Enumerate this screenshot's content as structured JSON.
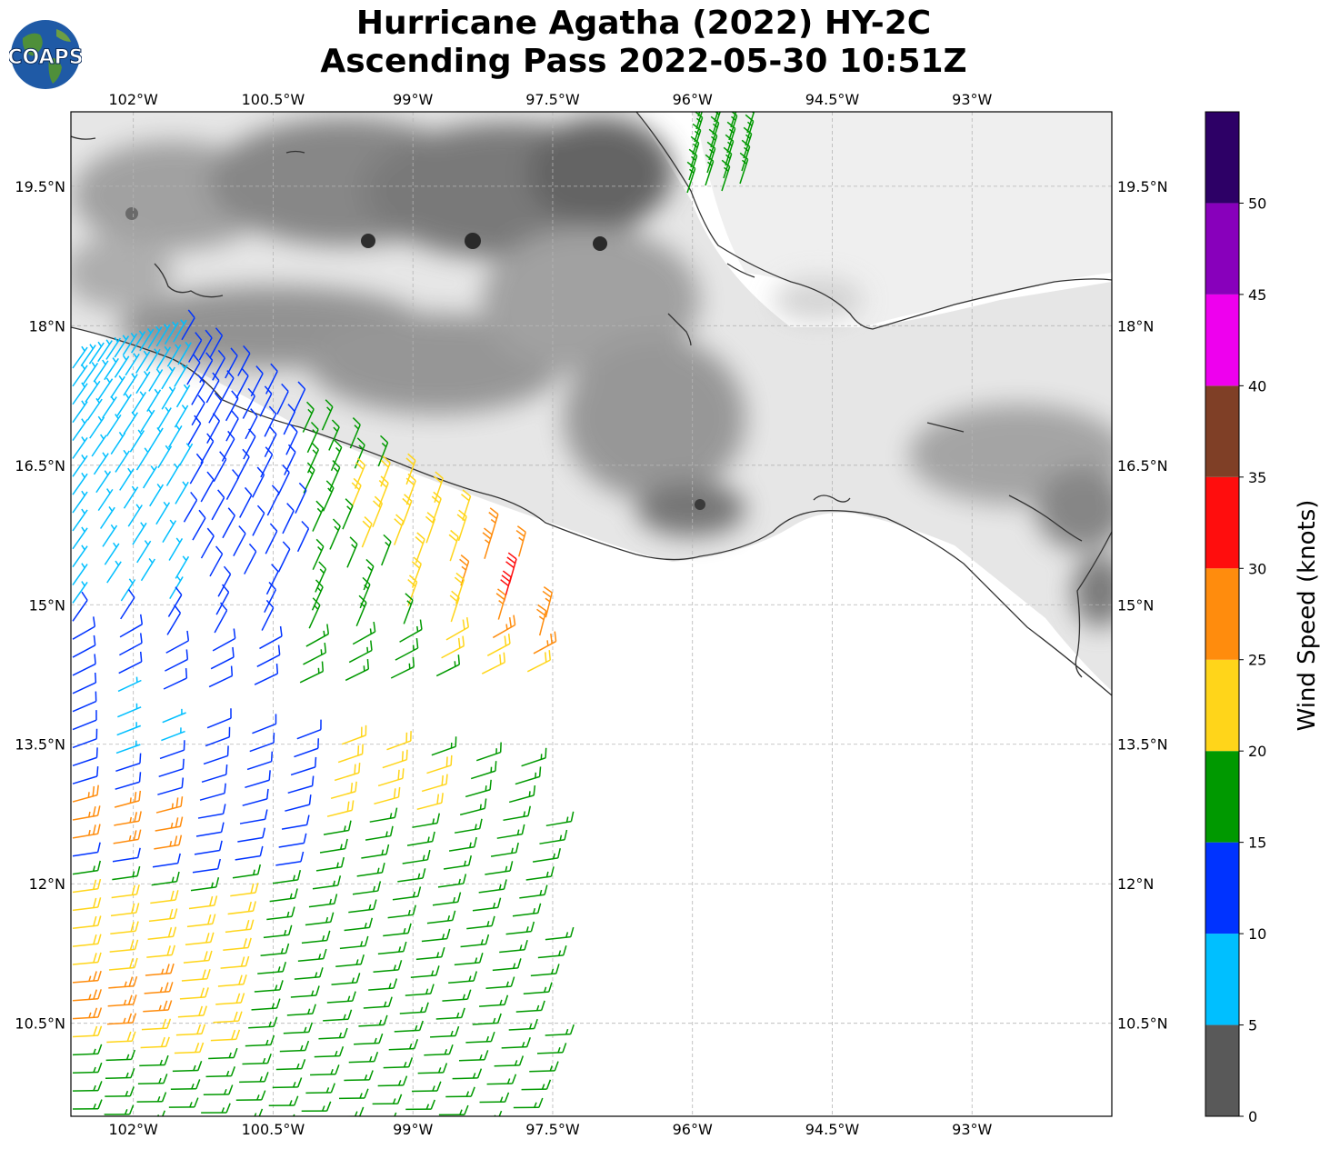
{
  "title": {
    "line1": "Hurricane Agatha (2022) HY-2C",
    "line2": "Ascending Pass 2022-05-30 10:51Z"
  },
  "logo": {
    "text": "COAPS",
    "icon": "globe-logo"
  },
  "map": {
    "lon_range": [
      -102.67,
      -91.5
    ],
    "lat_range": [
      9.5,
      20.3
    ],
    "lon_ticks": [
      {
        "value": -102.0,
        "label": "102°W"
      },
      {
        "value": -100.5,
        "label": "100.5°W"
      },
      {
        "value": -99.0,
        "label": "99°W"
      },
      {
        "value": -97.5,
        "label": "97.5°W"
      },
      {
        "value": -96.0,
        "label": "96°W"
      },
      {
        "value": -94.5,
        "label": "94.5°W"
      },
      {
        "value": -93.0,
        "label": "93°W"
      }
    ],
    "lat_ticks": [
      {
        "value": 19.5,
        "label": "19.5°N"
      },
      {
        "value": 18.0,
        "label": "18°N"
      },
      {
        "value": 16.5,
        "label": "16.5°N"
      },
      {
        "value": 15.0,
        "label": "15°N"
      },
      {
        "value": 13.5,
        "label": "13.5°N"
      },
      {
        "value": 12.0,
        "label": "12°N"
      },
      {
        "value": 10.5,
        "label": "10.5°N"
      }
    ],
    "gridlines": true,
    "background": "grayscale terrain over land, white ocean",
    "coastline_color": "#333333"
  },
  "colorbar": {
    "label": "Wind Speed (knots)",
    "bins": [
      {
        "min": 0,
        "max": 5,
        "color": "#595959"
      },
      {
        "min": 5,
        "max": 10,
        "color": "#00bfff"
      },
      {
        "min": 10,
        "max": 15,
        "color": "#0033ff"
      },
      {
        "min": 15,
        "max": 20,
        "color": "#009900"
      },
      {
        "min": 20,
        "max": 25,
        "color": "#ffd51a"
      },
      {
        "min": 25,
        "max": 30,
        "color": "#ff8c0d"
      },
      {
        "min": 30,
        "max": 35,
        "color": "#ff0d0d"
      },
      {
        "min": 35,
        "max": 40,
        "color": "#7f3f26"
      },
      {
        "min": 40,
        "max": 45,
        "color": "#ee00ee"
      },
      {
        "min": 45,
        "max": 50,
        "color": "#8800bb"
      },
      {
        "min": 50,
        "max": 55,
        "color": "#2d0066"
      }
    ],
    "tick_labels": [
      "0",
      "5",
      "10",
      "15",
      "20",
      "25",
      "30",
      "35",
      "40",
      "45",
      "50"
    ]
  },
  "chart_data": {
    "type": "scatter",
    "description": "Swath of wind barbs from HY-2C scatterometer, colored by wind speed (knots)",
    "wind_speed_range_knots": [
      5,
      35
    ],
    "max_wind_location": {
      "lon": -97.8,
      "lat": 15.2,
      "speed_bin": "30-35"
    },
    "swath_regions": [
      {
        "lon": -102.3,
        "lat": 17.2,
        "speed_bin": "5-10"
      },
      {
        "lon": -100.8,
        "lat": 15.5,
        "speed_bin": "10-15"
      },
      {
        "lon": -99.5,
        "lat": 15.5,
        "speed_bin": "15-20"
      },
      {
        "lon": -99.3,
        "lat": 16.3,
        "speed_bin": "20-25"
      },
      {
        "lon": -98.2,
        "lat": 15.5,
        "speed_bin": "25-30"
      },
      {
        "lon": -97.9,
        "lat": 15.2,
        "speed_bin": "30-35"
      },
      {
        "lon": -102.5,
        "lat": 11.0,
        "speed_bin": "25-30"
      },
      {
        "lon": -96.0,
        "lat": 19.8,
        "speed_bin": "15-20"
      }
    ]
  }
}
